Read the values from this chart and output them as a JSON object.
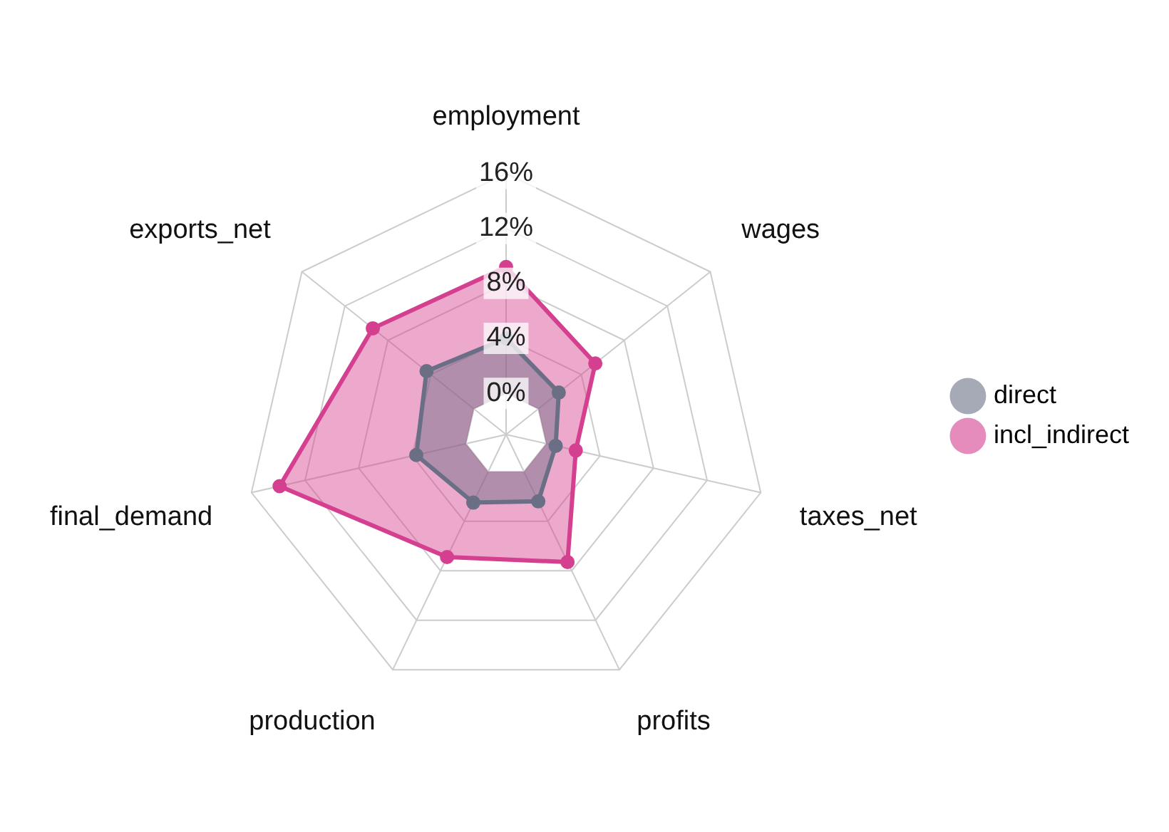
{
  "chart_data": {
    "type": "radar",
    "categories": [
      "employment",
      "wages",
      "taxes_net",
      "profits",
      "production",
      "final_demand",
      "exports_net"
    ],
    "series": [
      {
        "name": "direct",
        "color": "#6a6f86",
        "values": [
          4.0,
          1.9,
          0.7,
          2.4,
          2.5,
          3.7,
          4.4
        ]
      },
      {
        "name": "incl_indirect",
        "color": "#d4408f",
        "values": [
          9.2,
          5.3,
          2.2,
          7.3,
          6.9,
          13.9,
          9.4
        ]
      }
    ],
    "ylim": [
      -3,
      16
    ],
    "yticks": [
      {
        "value": 0,
        "label": "0%"
      },
      {
        "value": 4,
        "label": "4%"
      },
      {
        "value": 8,
        "label": "8%"
      },
      {
        "value": 12,
        "label": "12%"
      },
      {
        "value": 16,
        "label": "16%"
      }
    ],
    "grid": true,
    "legend": "right",
    "marker": "circle"
  }
}
